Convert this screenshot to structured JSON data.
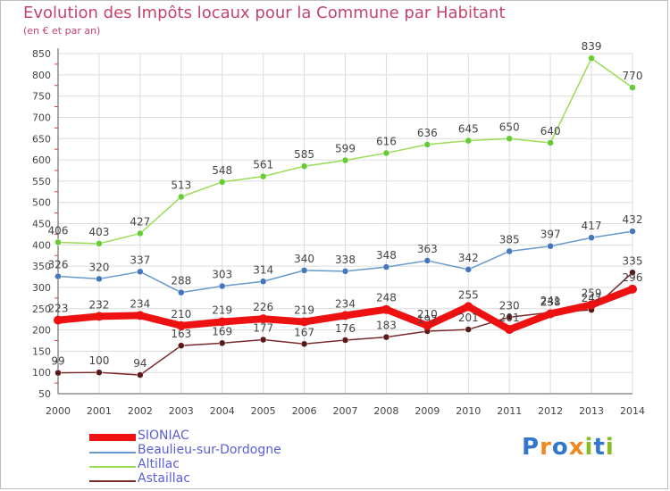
{
  "title": "Evolution des Impôts locaux pour la Commune par Habitant",
  "subtitle": "(en € et par an)",
  "logo": {
    "text": "Proxiti"
  },
  "chart_data": {
    "type": "line",
    "x": [
      2000,
      2001,
      2002,
      2003,
      2004,
      2005,
      2006,
      2007,
      2008,
      2009,
      2010,
      2011,
      2012,
      2013,
      2014
    ],
    "ylim": [
      50,
      850
    ],
    "yticks": [
      50,
      100,
      150,
      200,
      250,
      300,
      350,
      400,
      450,
      500,
      550,
      600,
      650,
      700,
      750,
      800,
      850
    ],
    "grid": true,
    "legend_position": "bottom-left",
    "series": [
      {
        "name": "Altillac",
        "color": "#99dd55",
        "dot": "#66cc33",
        "values": [
          406,
          403,
          427,
          513,
          548,
          561,
          585,
          599,
          616,
          636,
          645,
          650,
          640,
          839,
          770
        ]
      },
      {
        "name": "Beaulieu-sur-Dordogne",
        "color": "#6699cc",
        "dot": "#4477bb",
        "values": [
          326,
          320,
          337,
          288,
          303,
          314,
          340,
          338,
          348,
          363,
          342,
          385,
          397,
          417,
          432
        ]
      },
      {
        "name": "Astaillac",
        "color": "#7a2a2a",
        "dot": "#5a1a1a",
        "values": [
          99,
          100,
          94,
          163,
          169,
          177,
          167,
          176,
          183,
          197,
          201,
          230,
          241,
          247,
          335
        ]
      },
      {
        "name": "SIONIAC",
        "color": "#ee1111",
        "dot": "#ee1111",
        "thick": true,
        "values": [
          223,
          232,
          234,
          210,
          219,
          226,
          219,
          234,
          248,
          210,
          255,
          201,
          238,
          259,
          296
        ]
      }
    ],
    "point_labels": {
      "Astaillac": [
        "99",
        "100",
        "94",
        "163",
        "169",
        "177",
        "167",
        "176",
        "183",
        "197",
        "201",
        "230",
        "241",
        "247",
        "335"
      ]
    }
  },
  "legend": [
    {
      "label": "SIONIAC",
      "color": "#ee1111",
      "thick": true
    },
    {
      "label": "Beaulieu-sur-Dordogne",
      "color": "#6699cc"
    },
    {
      "label": "Altillac",
      "color": "#99dd55"
    },
    {
      "label": "Astaillac",
      "color": "#7a2a2a"
    }
  ]
}
